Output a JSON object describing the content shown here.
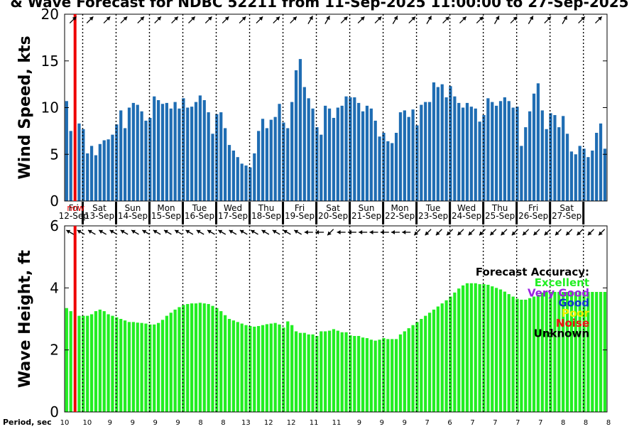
{
  "title": "& Wave Forecast for NDBC 52211 from 11-Sep-2025 11:00:00 to 27-Sep-2025",
  "colors": {
    "wind_bar": "#1f6db3",
    "wave_bar": "#22ee22",
    "now_line": "#ee0000",
    "day_line": "#000000"
  },
  "days": [
    {
      "dow": "Fri",
      "date": "12-Sep"
    },
    {
      "dow": "Sat",
      "date": "13-Sep"
    },
    {
      "dow": "Sun",
      "date": "14-Sep"
    },
    {
      "dow": "Mon",
      "date": "15-Sep"
    },
    {
      "dow": "Tue",
      "date": "16-Sep"
    },
    {
      "dow": "Wed",
      "date": "17-Sep"
    },
    {
      "dow": "Thu",
      "date": "18-Sep"
    },
    {
      "dow": "Fri",
      "date": "19-Sep"
    },
    {
      "dow": "Sat",
      "date": "20-Sep"
    },
    {
      "dow": "Sun",
      "date": "21-Sep"
    },
    {
      "dow": "Mon",
      "date": "22-Sep"
    },
    {
      "dow": "Tue",
      "date": "23-Sep"
    },
    {
      "dow": "Wed",
      "date": "24-Sep"
    },
    {
      "dow": "Thu",
      "date": "25-Sep"
    },
    {
      "dow": "Fri",
      "date": "26-Sep"
    },
    {
      "dow": "Sat",
      "date": "27-Sep"
    }
  ],
  "now_label": "now",
  "legend": {
    "title": "Forecast Accuracy:",
    "items": [
      {
        "label": "Excellent",
        "color": "#22ee22"
      },
      {
        "label": "Very Good",
        "color": "#9a22e0"
      },
      {
        "label": "Good",
        "color": "#1133cc"
      },
      {
        "label": "Poor",
        "color": "#eeee00"
      },
      {
        "label": "Noise",
        "color": "#ee1111"
      },
      {
        "label": "Unknown",
        "color": "#000000"
      }
    ]
  },
  "period": {
    "label": "Period, sec",
    "values": [
      "10",
      "10",
      "9",
      "9",
      "9",
      "9",
      "8",
      "8",
      "13",
      "12",
      "12",
      "11",
      "11",
      "9",
      "9",
      "9",
      "7",
      "6",
      "7",
      "7",
      "7",
      "7",
      "8",
      "8",
      "8"
    ]
  },
  "chart_data": [
    {
      "type": "bar",
      "ylabel": "Wind Speed, kts",
      "ylim": [
        0,
        20
      ],
      "yticks": [
        0,
        5,
        10,
        15,
        20
      ],
      "x_start": "2025-09-11 11:00",
      "x_step_hours": 3,
      "values": [
        10.7,
        7.5,
        0,
        8.3,
        7.7,
        5.1,
        5.9,
        4.9,
        6.1,
        6.5,
        6.6,
        7.1,
        8.2,
        9.7,
        7.8,
        10.0,
        10.5,
        10.3,
        9.6,
        8.6,
        8.9,
        11.2,
        10.8,
        10.4,
        10.5,
        9.9,
        10.6,
        9.9,
        11.0,
        10.0,
        10.1,
        10.6,
        11.3,
        10.8,
        9.5,
        7.2,
        9.3,
        9.5,
        7.8,
        6.0,
        5.4,
        4.7,
        4.0,
        3.8,
        3.6,
        5.1,
        7.5,
        8.8,
        7.8,
        8.7,
        9.0,
        10.4,
        8.4,
        7.8,
        10.6,
        14.0,
        15.2,
        12.2,
        11.0,
        9.9,
        7.9,
        7.1,
        10.2,
        9.9,
        8.9,
        10.0,
        10.2,
        11.2,
        11.1,
        11.1,
        10.5,
        9.6,
        10.2,
        9.9,
        8.6,
        6.9,
        7.3,
        6.4,
        6.2,
        7.3,
        9.5,
        9.7,
        9.0,
        9.8,
        8.1,
        10.3,
        10.6,
        10.6,
        12.7,
        12.2,
        12.5,
        11.1,
        12.3,
        11.2,
        10.5,
        10.0,
        10.5,
        10.1,
        9.9,
        8.5,
        9.2,
        11.0,
        10.6,
        10.2,
        10.7,
        11.1,
        10.7,
        10.0,
        10.1,
        5.9,
        7.9,
        9.6,
        11.5,
        12.6,
        9.7,
        7.7,
        9.4,
        9.2,
        7.9,
        9.1,
        7.2,
        5.3,
        5.0,
        5.9,
        5.6,
        4.7,
        5.4,
        7.3,
        8.3,
        5.6
      ]
    },
    {
      "type": "bar",
      "ylabel": "Wave Height, ft",
      "ylim": [
        0,
        6
      ],
      "yticks": [
        0,
        2,
        4,
        6
      ],
      "x_start": "2025-09-11 11:00",
      "x_step_hours": 3,
      "values": [
        3.35,
        3.25,
        0,
        3.1,
        3.1,
        3.1,
        3.15,
        3.25,
        3.3,
        3.25,
        3.15,
        3.1,
        3.05,
        3.0,
        2.95,
        2.9,
        2.9,
        2.88,
        2.87,
        2.85,
        2.82,
        2.82,
        2.87,
        2.97,
        3.1,
        3.2,
        3.3,
        3.38,
        3.45,
        3.48,
        3.5,
        3.5,
        3.52,
        3.5,
        3.48,
        3.42,
        3.35,
        3.25,
        3.12,
        3.0,
        2.95,
        2.9,
        2.85,
        2.8,
        2.77,
        2.75,
        2.77,
        2.8,
        2.83,
        2.85,
        2.87,
        2.82,
        2.72,
        2.92,
        2.8,
        2.6,
        2.55,
        2.55,
        2.5,
        2.5,
        2.45,
        2.6,
        2.6,
        2.62,
        2.67,
        2.62,
        2.57,
        2.57,
        2.47,
        2.45,
        2.45,
        2.4,
        2.38,
        2.33,
        2.3,
        2.33,
        2.38,
        2.35,
        2.35,
        2.35,
        2.5,
        2.6,
        2.7,
        2.8,
        2.9,
        3.0,
        3.1,
        3.2,
        3.3,
        3.4,
        3.5,
        3.6,
        3.72,
        3.85,
        3.98,
        4.08,
        4.15,
        4.15,
        4.15,
        4.12,
        4.12,
        4.1,
        4.05,
        4.0,
        3.95,
        3.88,
        3.8,
        3.72,
        3.65,
        3.62,
        3.62,
        3.67,
        3.72,
        3.78,
        3.85,
        3.87,
        3.87,
        3.87,
        3.87,
        3.87,
        3.87,
        3.87,
        3.87,
        3.87,
        3.87,
        3.87,
        3.87,
        3.87,
        3.87,
        3.87
      ]
    }
  ],
  "wind_arrow_angles": [
    -45,
    -45,
    -45,
    -45,
    -45,
    -45,
    -45,
    -45,
    -45,
    -45,
    -45,
    -45,
    -45,
    -45,
    -60,
    -60,
    -45,
    -45,
    -45,
    -60,
    -45,
    -60,
    -45,
    -45,
    -45,
    -60,
    -45,
    -60,
    -45,
    -60,
    -45,
    -45
  ],
  "wave_arrow_angles": [
    210,
    210,
    210,
    210,
    210,
    210,
    210,
    210,
    210,
    210,
    210,
    210,
    210,
    210,
    210,
    210,
    210,
    210,
    210,
    210,
    210,
    210,
    180,
    180,
    135,
    180,
    180,
    180,
    180,
    180,
    180,
    180,
    135,
    135,
    135,
    135,
    135,
    135,
    135,
    135,
    135,
    135,
    135,
    135,
    135,
    135,
    135,
    135,
    135,
    135
  ]
}
